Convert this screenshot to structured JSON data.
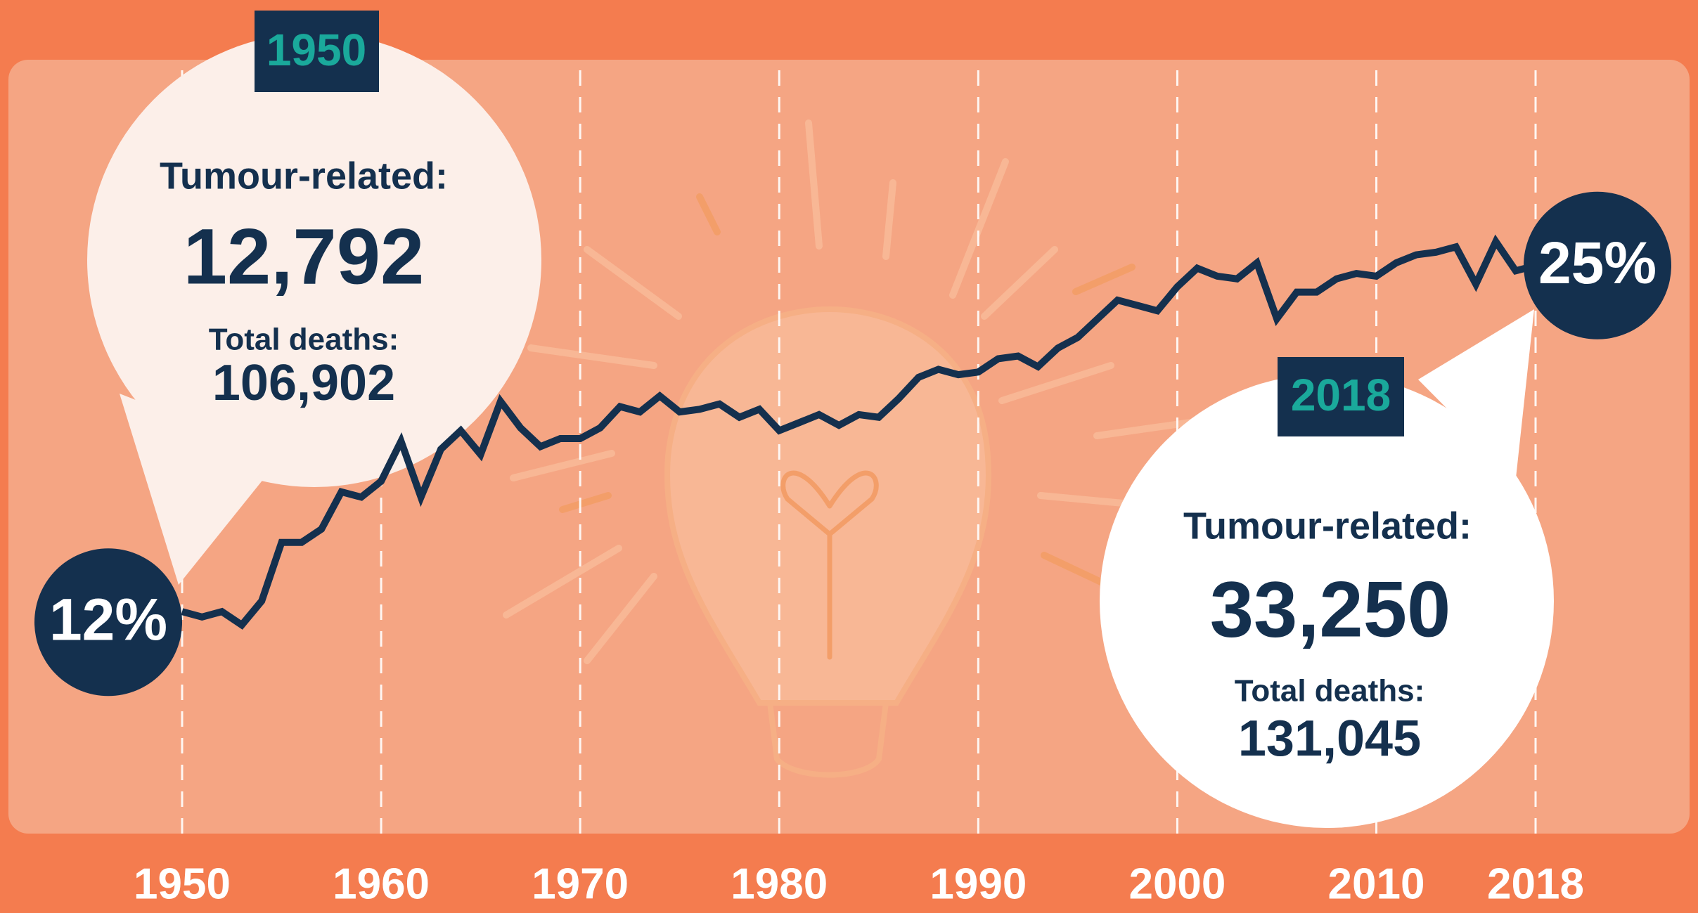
{
  "chart_data": {
    "type": "line",
    "x": [
      1950,
      1951,
      1952,
      1953,
      1954,
      1955,
      1956,
      1957,
      1958,
      1959,
      1960,
      1961,
      1962,
      1963,
      1964,
      1965,
      1966,
      1967,
      1968,
      1969,
      1970,
      1971,
      1972,
      1973,
      1974,
      1975,
      1976,
      1977,
      1978,
      1979,
      1980,
      1981,
      1982,
      1983,
      1984,
      1985,
      1986,
      1987,
      1988,
      1989,
      1990,
      1991,
      1992,
      1993,
      1994,
      1995,
      1996,
      1997,
      1998,
      1999,
      2000,
      2001,
      2002,
      2003,
      2004,
      2005,
      2006,
      2007,
      2008,
      2009,
      2010,
      2011,
      2012,
      2013,
      2014,
      2015,
      2016,
      2017,
      2018
    ],
    "values": [
      12,
      11.8,
      12,
      11.5,
      12.4,
      14.6,
      14.6,
      15.1,
      16.5,
      16.3,
      16.9,
      18.4,
      16.3,
      18.1,
      18.8,
      17.9,
      19.9,
      18.9,
      18.2,
      18.5,
      18.5,
      18.9,
      19.7,
      19.5,
      20.1,
      19.5,
      19.6,
      19.8,
      19.3,
      19.6,
      18.8,
      19.1,
      19.4,
      19.0,
      19.4,
      19.3,
      20.0,
      20.8,
      21.1,
      20.9,
      21.0,
      21.5,
      21.6,
      21.2,
      21.9,
      22.3,
      23.0,
      23.7,
      23.5,
      23.3,
      24.2,
      24.9,
      24.6,
      24.5,
      25.1,
      23.0,
      24.0,
      24.0,
      24.5,
      24.7,
      24.6,
      25.1,
      25.4,
      25.5,
      25.7,
      24.3,
      25.9,
      24.8,
      25
    ],
    "value_labels": [
      "12%",
      null,
      null,
      null,
      null,
      null,
      null,
      null,
      null,
      null,
      null,
      null,
      null,
      null,
      null,
      null,
      null,
      null,
      null,
      null,
      null,
      null,
      null,
      null,
      null,
      null,
      null,
      null,
      null,
      null,
      null,
      null,
      null,
      null,
      null,
      null,
      null,
      null,
      null,
      null,
      null,
      null,
      null,
      null,
      null,
      null,
      null,
      null,
      null,
      null,
      null,
      null,
      null,
      null,
      null,
      null,
      null,
      null,
      null,
      null,
      null,
      null,
      null,
      null,
      null,
      null,
      null,
      null,
      "25%"
    ],
    "color": "#14304e",
    "xlim": [
      1950,
      2018
    ],
    "xticks": [
      1950,
      1960,
      1970,
      1980,
      1990,
      2000,
      2010,
      2018
    ],
    "ylim": [
      10,
      27
    ],
    "grid": true,
    "annotations": [
      {
        "year": "1950",
        "label": "Tumour-related:",
        "value": "12,792",
        "total_label": "Total deaths:",
        "total": "106,902"
      },
      {
        "year": "2018",
        "label": "Tumour-related:",
        "value": "33,250",
        "total_label": "Total deaths:",
        "total": "131,045"
      }
    ]
  }
}
